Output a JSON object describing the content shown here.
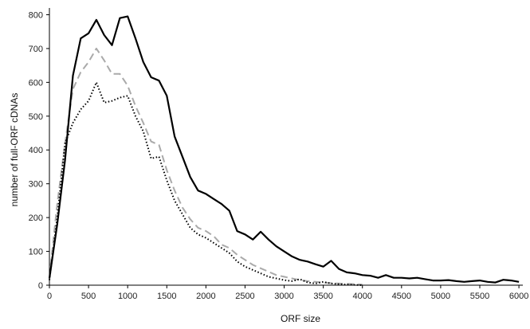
{
  "chart_data": {
    "type": "line",
    "title": "",
    "xlabel": "ORF size",
    "ylabel": "number of full-ORF cDNAs",
    "xlim": [
      0,
      6050
    ],
    "ylim": [
      0,
      820
    ],
    "x_ticks": [
      0,
      500,
      1000,
      1500,
      2000,
      2500,
      3000,
      3500,
      4000,
      4500,
      5000,
      5500,
      6000
    ],
    "y_ticks": [
      0,
      100,
      200,
      300,
      400,
      500,
      600,
      700,
      800
    ],
    "grid": false,
    "legend": "none",
    "series": [
      {
        "style": "solid",
        "color": "#000000",
        "points": [
          [
            0,
            20
          ],
          [
            100,
            180
          ],
          [
            200,
            370
          ],
          [
            300,
            620
          ],
          [
            400,
            730
          ],
          [
            500,
            745
          ],
          [
            600,
            785
          ],
          [
            700,
            740
          ],
          [
            800,
            710
          ],
          [
            900,
            790
          ],
          [
            1000,
            795
          ],
          [
            1100,
            730
          ],
          [
            1200,
            660
          ],
          [
            1300,
            615
          ],
          [
            1400,
            605
          ],
          [
            1500,
            560
          ],
          [
            1600,
            440
          ],
          [
            1700,
            380
          ],
          [
            1800,
            320
          ],
          [
            1900,
            280
          ],
          [
            2000,
            270
          ],
          [
            2100,
            255
          ],
          [
            2200,
            240
          ],
          [
            2300,
            220
          ],
          [
            2400,
            160
          ],
          [
            2500,
            150
          ],
          [
            2600,
            135
          ],
          [
            2700,
            158
          ],
          [
            2800,
            135
          ],
          [
            2900,
            115
          ],
          [
            3000,
            100
          ],
          [
            3100,
            85
          ],
          [
            3200,
            75
          ],
          [
            3300,
            70
          ],
          [
            3400,
            62
          ],
          [
            3500,
            55
          ],
          [
            3600,
            72
          ],
          [
            3700,
            48
          ],
          [
            3800,
            38
          ],
          [
            3900,
            35
          ],
          [
            4000,
            30
          ],
          [
            4100,
            28
          ],
          [
            4200,
            22
          ],
          [
            4300,
            30
          ],
          [
            4400,
            22
          ],
          [
            4500,
            22
          ],
          [
            4600,
            20
          ],
          [
            4700,
            22
          ],
          [
            4800,
            18
          ],
          [
            4900,
            14
          ],
          [
            5000,
            14
          ],
          [
            5100,
            15
          ],
          [
            5200,
            12
          ],
          [
            5300,
            10
          ],
          [
            5400,
            12
          ],
          [
            5500,
            14
          ],
          [
            5600,
            10
          ],
          [
            5700,
            8
          ],
          [
            5800,
            16
          ],
          [
            5900,
            14
          ],
          [
            6000,
            10
          ]
        ]
      },
      {
        "style": "dashed",
        "color": "#aaaaaa",
        "points": [
          [
            0,
            25
          ],
          [
            100,
            240
          ],
          [
            200,
            420
          ],
          [
            300,
            580
          ],
          [
            400,
            630
          ],
          [
            500,
            660
          ],
          [
            600,
            700
          ],
          [
            700,
            665
          ],
          [
            800,
            625
          ],
          [
            900,
            625
          ],
          [
            1000,
            590
          ],
          [
            1100,
            530
          ],
          [
            1200,
            480
          ],
          [
            1300,
            425
          ],
          [
            1400,
            415
          ],
          [
            1500,
            340
          ],
          [
            1600,
            280
          ],
          [
            1700,
            230
          ],
          [
            1800,
            195
          ],
          [
            1900,
            170
          ],
          [
            2000,
            160
          ],
          [
            2100,
            145
          ],
          [
            2200,
            120
          ],
          [
            2300,
            110
          ],
          [
            2400,
            90
          ],
          [
            2500,
            75
          ],
          [
            2600,
            60
          ],
          [
            2700,
            50
          ],
          [
            2800,
            40
          ],
          [
            2900,
            30
          ],
          [
            3000,
            25
          ],
          [
            3100,
            20
          ],
          [
            3200,
            15
          ],
          [
            3300,
            12
          ],
          [
            3400,
            10
          ],
          [
            3500,
            8
          ],
          [
            3600,
            6
          ],
          [
            3700,
            5
          ],
          [
            3800,
            4
          ],
          [
            3900,
            3
          ],
          [
            4000,
            2
          ]
        ]
      },
      {
        "style": "dotted",
        "color": "#000000",
        "points": [
          [
            0,
            15
          ],
          [
            100,
            200
          ],
          [
            200,
            420
          ],
          [
            300,
            480
          ],
          [
            400,
            520
          ],
          [
            500,
            545
          ],
          [
            600,
            600
          ],
          [
            700,
            540
          ],
          [
            800,
            545
          ],
          [
            900,
            555
          ],
          [
            1000,
            560
          ],
          [
            1100,
            500
          ],
          [
            1200,
            455
          ],
          [
            1300,
            375
          ],
          [
            1400,
            380
          ],
          [
            1500,
            310
          ],
          [
            1600,
            250
          ],
          [
            1700,
            210
          ],
          [
            1800,
            170
          ],
          [
            1900,
            150
          ],
          [
            2000,
            140
          ],
          [
            2100,
            125
          ],
          [
            2200,
            110
          ],
          [
            2300,
            95
          ],
          [
            2400,
            70
          ],
          [
            2500,
            55
          ],
          [
            2600,
            45
          ],
          [
            2700,
            35
          ],
          [
            2800,
            25
          ],
          [
            2900,
            20
          ],
          [
            3000,
            15
          ],
          [
            3100,
            12
          ],
          [
            3200,
            18
          ],
          [
            3300,
            8
          ],
          [
            3400,
            5
          ],
          [
            3500,
            10
          ],
          [
            3600,
            5
          ],
          [
            3700,
            3
          ],
          [
            3800,
            2
          ],
          [
            3900,
            1
          ],
          [
            4000,
            0
          ]
        ]
      }
    ]
  }
}
